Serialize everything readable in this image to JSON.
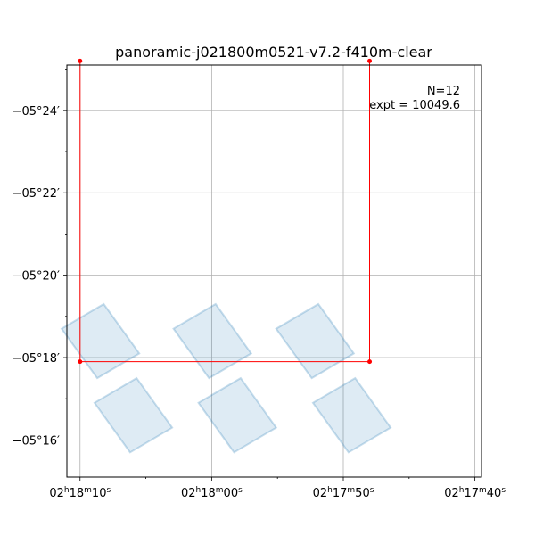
{
  "chart_data": {
    "type": "scatter",
    "title": "panoramic-j021800m0521-v7.2-f410m-clear",
    "xlabel": "",
    "ylabel": "",
    "x_unit": "RA (seconds of time within 02h17m-02h18m)",
    "y_unit": "Dec arcminutes, negative (-05°16′ = 16)",
    "xlim": [
      11.0,
      -20.5
    ],
    "ylim": [
      25.1,
      15.1
    ],
    "grid": true,
    "x_ticks": [
      {
        "value": 10,
        "h": "02",
        "m": "18",
        "s": "10"
      },
      {
        "value": 0,
        "h": "02",
        "m": "18",
        "s": "00"
      },
      {
        "value": -10,
        "h": "02",
        "m": "17",
        "s": "50"
      },
      {
        "value": -20,
        "h": "02",
        "m": "17",
        "s": "40"
      }
    ],
    "y_ticks": [
      {
        "value": 16,
        "label": "−05°16′"
      },
      {
        "value": 18,
        "label": "−05°18′"
      },
      {
        "value": 20,
        "label": "−05°20′"
      },
      {
        "value": 22,
        "label": "−05°22′"
      },
      {
        "value": 24,
        "label": "−05°24′"
      }
    ],
    "annotations": {
      "n": "N=12",
      "expt": "expt = 10049.6"
    },
    "footprint_color": "#1f77b4",
    "boundary_color": "#ff0000",
    "footprints": [
      [
        [
          6.2,
          15.7
        ],
        [
          3.0,
          16.3
        ],
        [
          5.7,
          17.5
        ],
        [
          8.9,
          16.9
        ]
      ],
      [
        [
          8.7,
          17.5
        ],
        [
          5.5,
          18.1
        ],
        [
          8.2,
          19.3
        ],
        [
          11.4,
          18.7
        ]
      ],
      [
        [
          -1.7,
          15.7
        ],
        [
          -4.9,
          16.3
        ],
        [
          -2.2,
          17.5
        ],
        [
          1.0,
          16.9
        ]
      ],
      [
        [
          0.2,
          17.5
        ],
        [
          -3.0,
          18.1
        ],
        [
          -0.3,
          19.3
        ],
        [
          2.9,
          18.7
        ]
      ],
      [
        [
          -10.4,
          15.7
        ],
        [
          -13.6,
          16.3
        ],
        [
          -10.9,
          17.5
        ],
        [
          -7.7,
          16.9
        ]
      ],
      [
        [
          -7.6,
          17.5
        ],
        [
          -10.8,
          18.1
        ],
        [
          -8.1,
          19.3
        ],
        [
          -4.9,
          18.7
        ]
      ]
    ],
    "boundary": [
      [
        10.0,
        25.2
      ],
      [
        10.0,
        17.9
      ],
      [
        -12.0,
        17.9
      ],
      [
        -12.0,
        25.2
      ]
    ]
  }
}
